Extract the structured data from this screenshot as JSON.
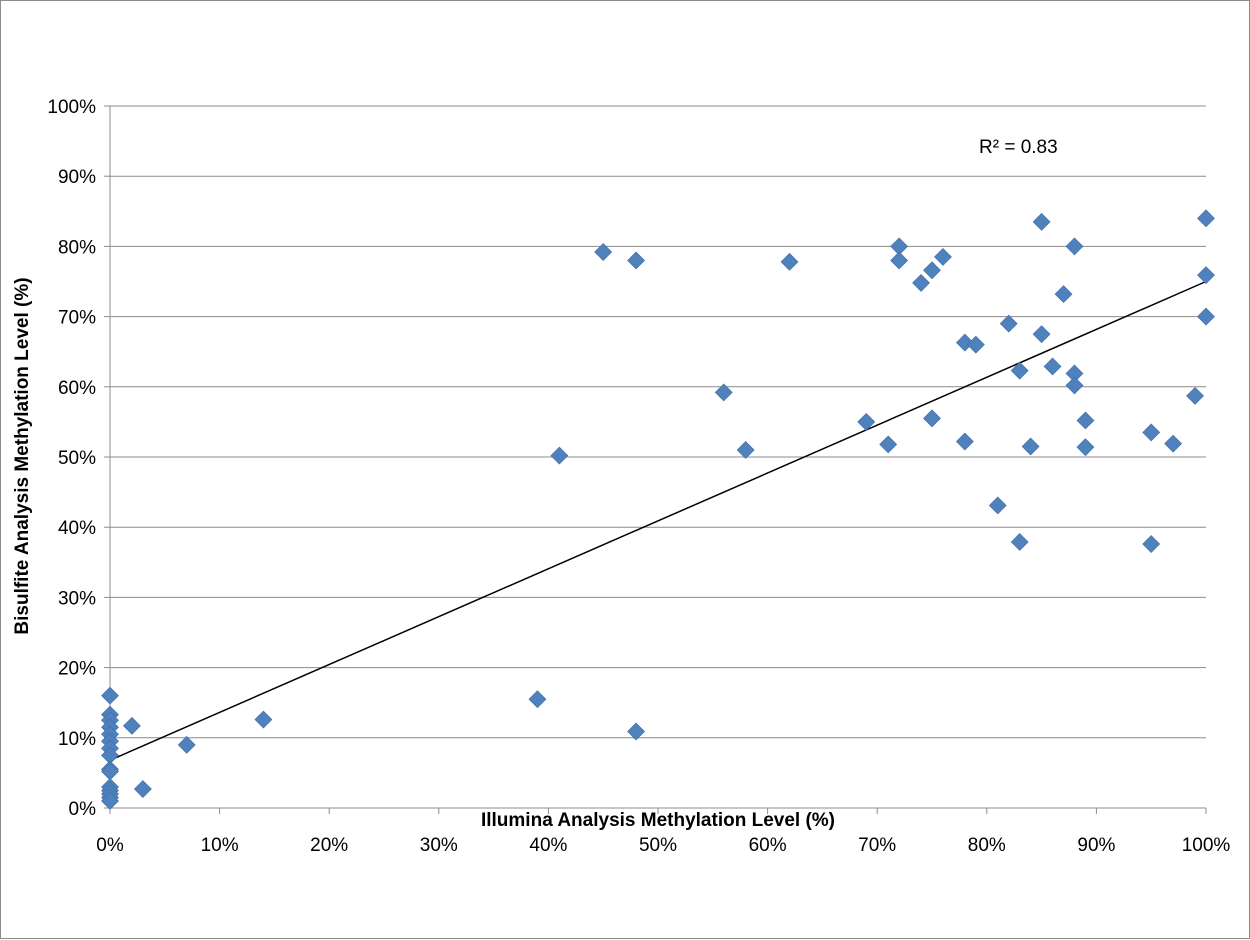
{
  "chart_data": {
    "type": "scatter",
    "xlabel": "Illumina Analysis Methylation Level (%)",
    "ylabel": "Bisulfite Analysis Methylation Level (%)",
    "xlim": [
      0,
      100
    ],
    "ylim": [
      0,
      100
    ],
    "x_ticks": [
      "0%",
      "10%",
      "20%",
      "30%",
      "40%",
      "50%",
      "60%",
      "70%",
      "80%",
      "90%",
      "100%"
    ],
    "y_ticks": [
      "0%",
      "10%",
      "20%",
      "30%",
      "40%",
      "50%",
      "60%",
      "70%",
      "80%",
      "90%",
      "100%"
    ],
    "grid": "horizontal",
    "annotation": "R² = 0.83",
    "trendline": {
      "type": "linear",
      "x": [
        0,
        100
      ],
      "y": [
        6.8,
        75.0
      ]
    },
    "marker_color": "#4f81bd",
    "line_color": "#000000",
    "points": [
      [
        0,
        16.0
      ],
      [
        0,
        13.3
      ],
      [
        0,
        12.5
      ],
      [
        0,
        11.5
      ],
      [
        0,
        10.5
      ],
      [
        0,
        9.5
      ],
      [
        0,
        8.5
      ],
      [
        0,
        7.5
      ],
      [
        0,
        5.5
      ],
      [
        0,
        5.2
      ],
      [
        0,
        3.0
      ],
      [
        0,
        2.5
      ],
      [
        0,
        2.0
      ],
      [
        0,
        1.5
      ],
      [
        0,
        1.0
      ],
      [
        2,
        11.7
      ],
      [
        3,
        2.7
      ],
      [
        7,
        9.0
      ],
      [
        14,
        12.6
      ],
      [
        39,
        15.5
      ],
      [
        41,
        50.2
      ],
      [
        45,
        79.2
      ],
      [
        48,
        78.0
      ],
      [
        48,
        10.9
      ],
      [
        56,
        59.2
      ],
      [
        58,
        51.0
      ],
      [
        62,
        77.8
      ],
      [
        69,
        55.0
      ],
      [
        71,
        51.8
      ],
      [
        72,
        80.0
      ],
      [
        72,
        78.0
      ],
      [
        74,
        74.8
      ],
      [
        75,
        76.6
      ],
      [
        75,
        55.5
      ],
      [
        76,
        78.5
      ],
      [
        78,
        66.3
      ],
      [
        78,
        52.2
      ],
      [
        79,
        66.0
      ],
      [
        81,
        43.1
      ],
      [
        82,
        69.0
      ],
      [
        83,
        62.3
      ],
      [
        83,
        37.9
      ],
      [
        84,
        51.5
      ],
      [
        85,
        83.5
      ],
      [
        85,
        67.5
      ],
      [
        86,
        62.9
      ],
      [
        87,
        73.2
      ],
      [
        88,
        80.0
      ],
      [
        88,
        61.9
      ],
      [
        88,
        60.2
      ],
      [
        89,
        55.2
      ],
      [
        89,
        51.4
      ],
      [
        95,
        53.5
      ],
      [
        95,
        37.6
      ],
      [
        97,
        51.9
      ],
      [
        99,
        58.7
      ],
      [
        100,
        84.0
      ],
      [
        100,
        75.9
      ],
      [
        100,
        70.0
      ]
    ]
  }
}
